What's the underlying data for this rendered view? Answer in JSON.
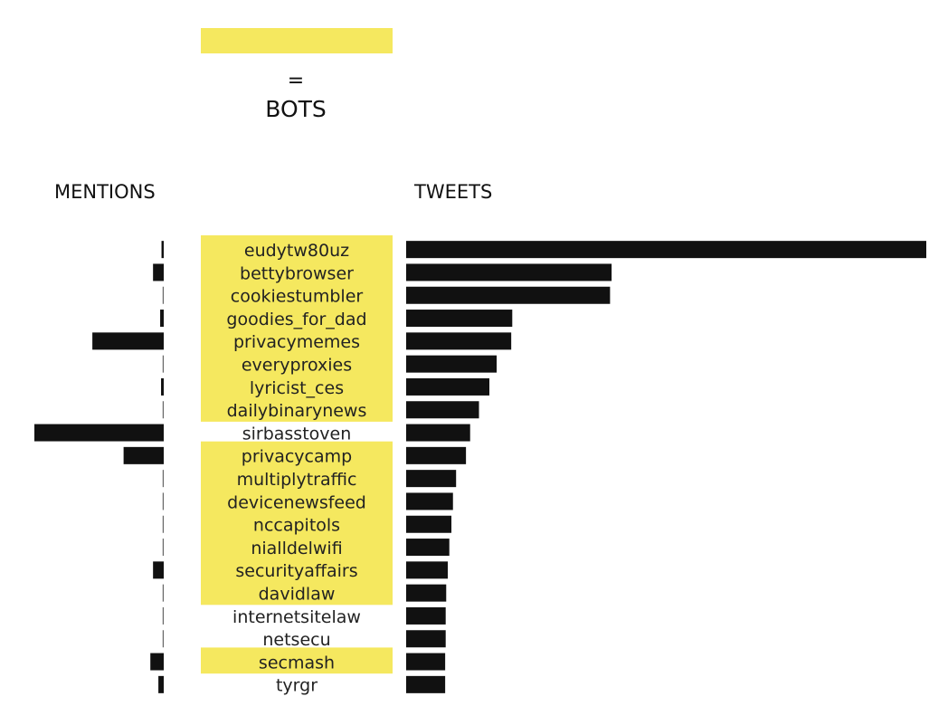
{
  "chart_data": {
    "type": "bar",
    "legend": {
      "symbol_meaning": "BOTS",
      "equals": "="
    },
    "mentions_header": "MENTIONS",
    "tweets_header": "TWEETS",
    "colors": {
      "bot_highlight": "#F5E85F",
      "bar": "#111111",
      "text": "#222222"
    },
    "categories": [
      "eudytw80uz",
      "bettybrowser",
      "cookiestumbler",
      "goodies_for_dad",
      "privacymemes",
      "everyproxies",
      "lyricist_ces",
      "dailybinarynews",
      "sirbasstoven",
      "privacycamp",
      "multiplytraffic",
      "devicenewsfeed",
      "nccapitols",
      "nialldelwifi",
      "securityaffairs",
      "davidlaw",
      "internetsitelaw",
      "netsecu",
      "secmash",
      "tyrgr"
    ],
    "is_bot": [
      true,
      true,
      true,
      true,
      true,
      true,
      true,
      true,
      false,
      true,
      true,
      true,
      true,
      true,
      true,
      true,
      false,
      false,
      true,
      false
    ],
    "series": [
      {
        "name": "MENTIONS",
        "values": [
          0.25,
          1.2,
          0.1,
          0.4,
          8.0,
          0.1,
          0.3,
          0.1,
          14.5,
          4.5,
          0.1,
          0.1,
          0.1,
          0.1,
          1.2,
          0.1,
          0.1,
          0.2,
          1.5,
          0.6
        ]
      },
      {
        "name": "TWEETS",
        "values": [
          100,
          39.5,
          39.2,
          20.4,
          20.2,
          17.4,
          16.0,
          14.0,
          12.3,
          11.5,
          9.6,
          9.0,
          8.7,
          8.3,
          8.0,
          7.7,
          7.6,
          7.6,
          7.5,
          7.5
        ]
      }
    ]
  }
}
